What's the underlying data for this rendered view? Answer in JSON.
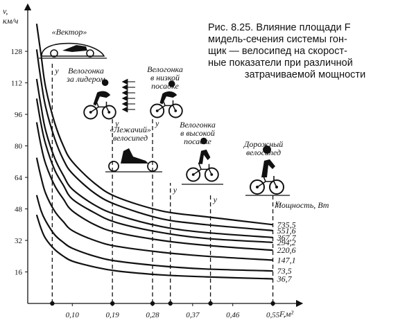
{
  "caption": {
    "lines": [
      "Рис. 8.25. Влияние площади F",
      "мидель-сечения системы гон-",
      "щик — велосипед на скорост-",
      "ные показатели при различной",
      "затрачиваемой мощности"
    ]
  },
  "axes": {
    "y_label_top": "v,",
    "y_label_unit": "км/ч",
    "x_label": "F,м²",
    "power_header": "Мощность, Вт"
  },
  "bikes": [
    {
      "id": "vektor",
      "label_lines": [
        "«Вектор»"
      ]
    },
    {
      "id": "leader",
      "label_lines": [
        "Велогонка",
        "за лидером"
      ]
    },
    {
      "id": "lowpos",
      "label_lines": [
        "Велогонка",
        "в низкой",
        "посадке"
      ]
    },
    {
      "id": "recumbent",
      "label_lines": [
        "«Лежачий»",
        "велосипед"
      ]
    },
    {
      "id": "highpos",
      "label_lines": [
        "Велогонка",
        "в высокой",
        "посадке"
      ]
    },
    {
      "id": "road",
      "label_lines": [
        "Дорожный",
        "велосипед"
      ]
    }
  ],
  "marker_letter": "у",
  "chart_data": {
    "type": "line",
    "x_ticks": [
      "0,10",
      "0,19",
      "0,28",
      "0,37",
      "0,46",
      "0,55"
    ],
    "y_ticks": [
      16,
      32,
      48,
      64,
      80,
      96,
      112,
      128
    ],
    "xlabel": "F,м²",
    "ylabel": "v, км/ч",
    "xlim": [
      0.0,
      0.56
    ],
    "ylim": [
      0,
      140
    ],
    "series": [
      {
        "name": "735,5",
        "x": [
          0.02,
          0.03,
          0.04,
          0.06,
          0.08,
          0.1,
          0.15,
          0.2,
          0.3,
          0.4,
          0.55
        ],
        "y": [
          142,
          126,
          110,
          92,
          80,
          72,
          61,
          54,
          47,
          44,
          40
        ]
      },
      {
        "name": "551,6",
        "x": [
          0.02,
          0.03,
          0.04,
          0.06,
          0.08,
          0.1,
          0.15,
          0.2,
          0.3,
          0.4,
          0.55
        ],
        "y": [
          129,
          113,
          100,
          84,
          73,
          66,
          56,
          50,
          43,
          40,
          37
        ]
      },
      {
        "name": "367,7",
        "x": [
          0.02,
          0.03,
          0.04,
          0.06,
          0.08,
          0.1,
          0.15,
          0.2,
          0.3,
          0.4,
          0.55
        ],
        "y": [
          114,
          100,
          88,
          74,
          65,
          58,
          50,
          45,
          39,
          36,
          33.5
        ]
      },
      {
        "name": "294,2",
        "x": [
          0.02,
          0.03,
          0.04,
          0.06,
          0.08,
          0.1,
          0.15,
          0.2,
          0.3,
          0.4,
          0.55
        ],
        "y": [
          104,
          91,
          81,
          68,
          60,
          53,
          46,
          41,
          36,
          33,
          31
        ]
      },
      {
        "name": "220,6",
        "x": [
          0.02,
          0.03,
          0.04,
          0.06,
          0.08,
          0.1,
          0.15,
          0.2,
          0.3,
          0.4,
          0.55
        ],
        "y": [
          92,
          80,
          71,
          60,
          53,
          47,
          40,
          36,
          32,
          29.5,
          27
        ]
      },
      {
        "name": "147,1",
        "x": [
          0.02,
          0.03,
          0.04,
          0.06,
          0.08,
          0.1,
          0.15,
          0.2,
          0.3,
          0.4,
          0.55
        ],
        "y": [
          74,
          64,
          56,
          47,
          41.5,
          37,
          32,
          29,
          26,
          24,
          22
        ]
      },
      {
        "name": "73,5",
        "x": [
          0.02,
          0.03,
          0.04,
          0.06,
          0.08,
          0.1,
          0.15,
          0.2,
          0.3,
          0.4,
          0.55
        ],
        "y": [
          55,
          47,
          42,
          35,
          31,
          28,
          24,
          21.5,
          19,
          17.5,
          16.5
        ]
      },
      {
        "name": "36,7",
        "x": [
          0.02,
          0.03,
          0.04,
          0.06,
          0.08,
          0.1,
          0.15,
          0.2,
          0.3,
          0.4,
          0.55
        ],
        "y": [
          45,
          38,
          33,
          27.5,
          24,
          21.5,
          18.5,
          16.5,
          14.5,
          13.5,
          12.5
        ]
      }
    ],
    "markers_x": [
      0.055,
      0.19,
      0.28,
      0.32,
      0.41,
      0.55
    ],
    "grid": false
  }
}
